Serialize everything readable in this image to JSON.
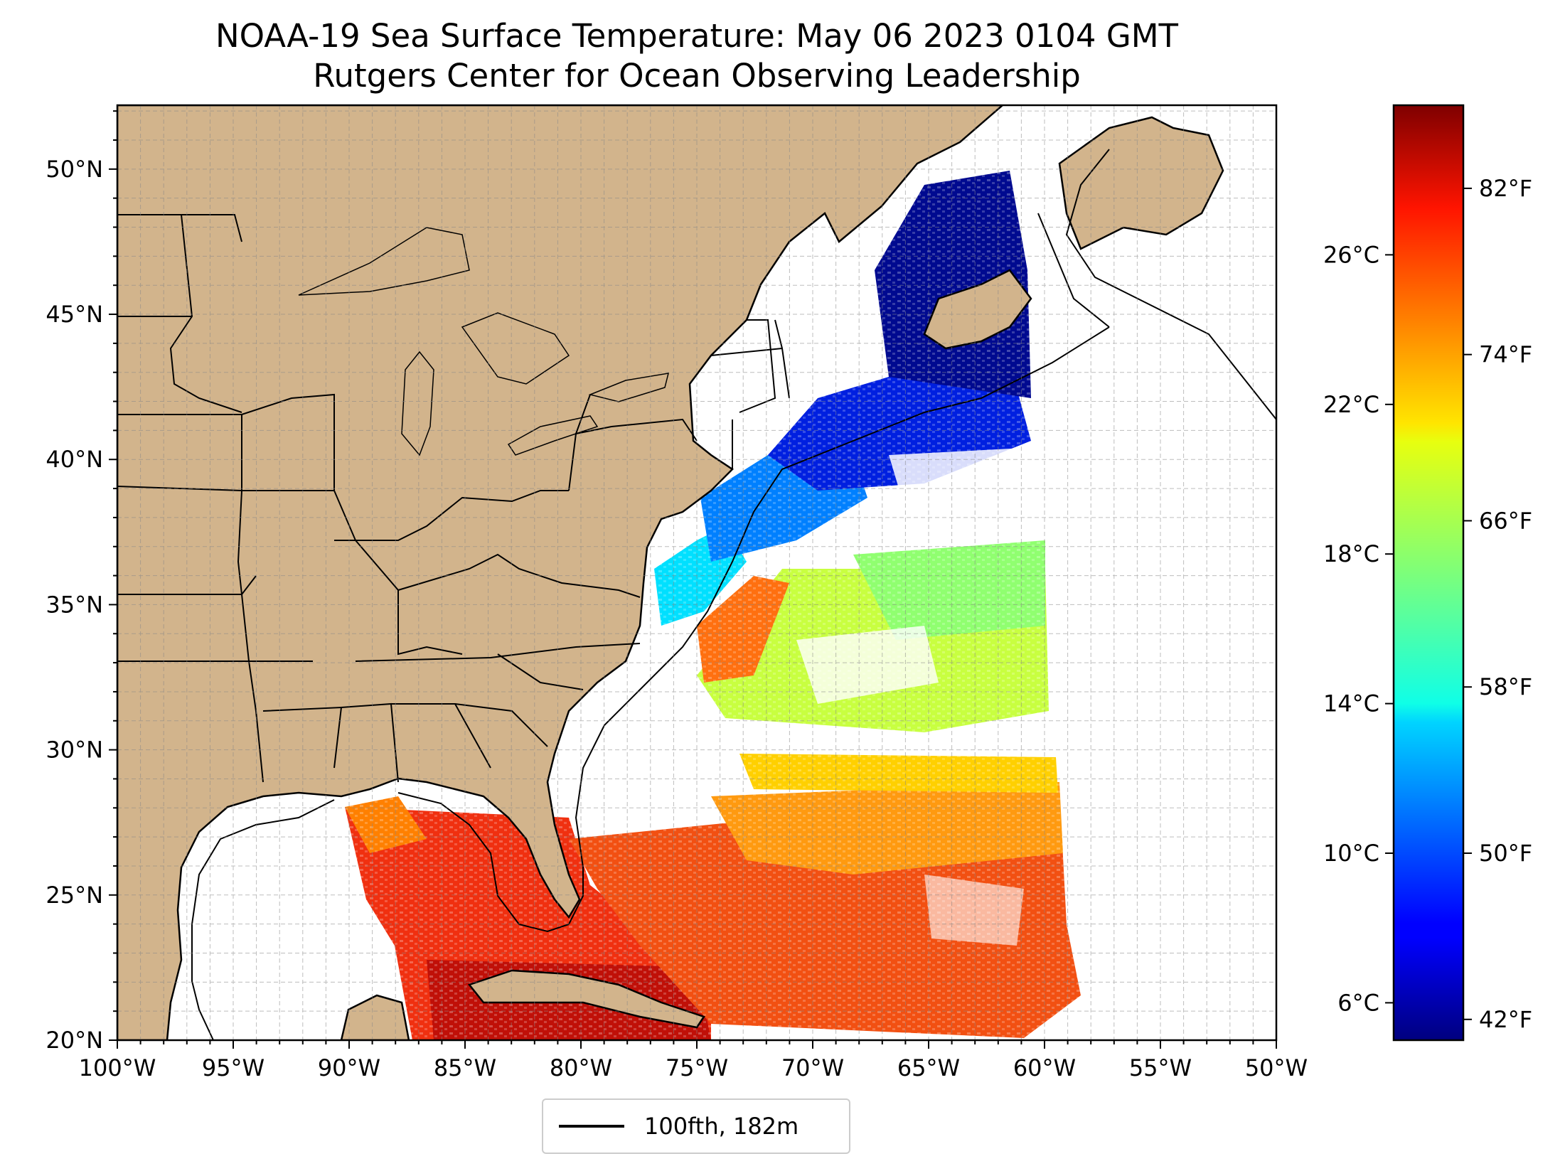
{
  "title": "NOAA-19 Sea Surface Temperature: May 06 2023 0104 GMT",
  "subtitle": "Rutgers Center for Ocean Observing Leadership",
  "map": {
    "lon_range": [
      -100,
      -50
    ],
    "lat_range": [
      20,
      52.2
    ],
    "land_color": "#d2b48c",
    "lake_color": "#9bb8e6",
    "grid": true,
    "lon_ticks": [
      {
        "value": -100,
        "label": "100°W"
      },
      {
        "value": -95,
        "label": "95°W"
      },
      {
        "value": -90,
        "label": "90°W"
      },
      {
        "value": -85,
        "label": "85°W"
      },
      {
        "value": -80,
        "label": "80°W"
      },
      {
        "value": -75,
        "label": "75°W"
      },
      {
        "value": -70,
        "label": "70°W"
      },
      {
        "value": -65,
        "label": "65°W"
      },
      {
        "value": -60,
        "label": "60°W"
      },
      {
        "value": -55,
        "label": "55°W"
      },
      {
        "value": -50,
        "label": "50°W"
      }
    ],
    "lat_ticks": [
      {
        "value": 20,
        "label": "20°N"
      },
      {
        "value": 25,
        "label": "25°N"
      },
      {
        "value": 30,
        "label": "30°N"
      },
      {
        "value": 35,
        "label": "35°N"
      },
      {
        "value": 40,
        "label": "40°N"
      },
      {
        "value": 45,
        "label": "45°N"
      },
      {
        "value": 50,
        "label": "50°N"
      }
    ]
  },
  "legend": {
    "label": "100fth, 182m",
    "line_color": "#000000",
    "placement": "bottom-center"
  },
  "colorbar": {
    "colormap": "jet",
    "celsius_range": [
      5.0,
      30.0
    ],
    "celsius_ticks": [
      {
        "value": 6,
        "label": "6°C"
      },
      {
        "value": 10,
        "label": "10°C"
      },
      {
        "value": 14,
        "label": "14°C"
      },
      {
        "value": 18,
        "label": "18°C"
      },
      {
        "value": 22,
        "label": "22°C"
      },
      {
        "value": 26,
        "label": "26°C"
      }
    ],
    "fahrenheit_ticks": [
      {
        "value": 42,
        "label": "42°F"
      },
      {
        "value": 50,
        "label": "50°F"
      },
      {
        "value": 58,
        "label": "58°F"
      },
      {
        "value": 66,
        "label": "66°F"
      },
      {
        "value": 74,
        "label": "74°F"
      },
      {
        "value": 82,
        "label": "82°F"
      }
    ]
  }
}
